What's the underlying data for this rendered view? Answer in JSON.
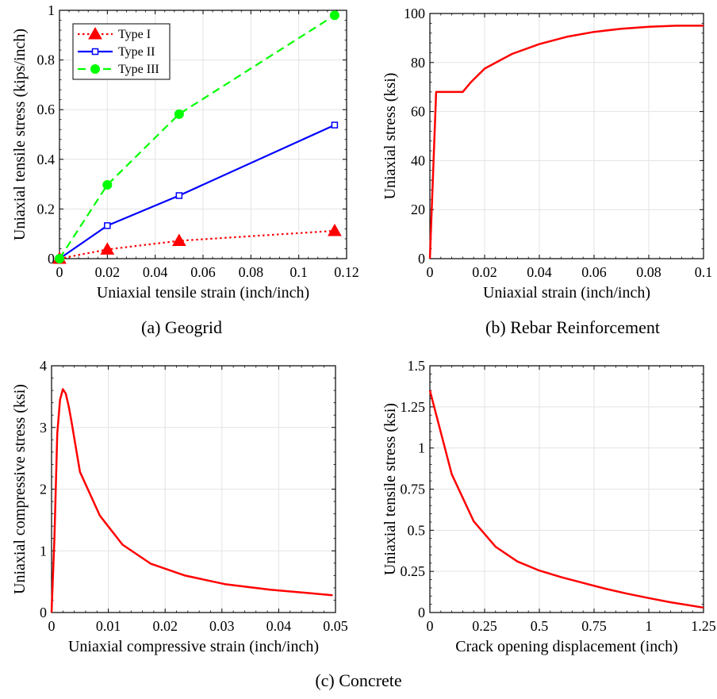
{
  "charts": [
    {
      "type": "line",
      "xlabel": "Uniaxial tensile strain (inch/inch)",
      "ylabel": "Uniaxial tensile stress (kips/inch)",
      "xlim": [
        0,
        0.12
      ],
      "ylim": [
        0,
        1
      ],
      "xticks": [
        0,
        0.02,
        0.04,
        0.06,
        0.08,
        0.1,
        0.12
      ],
      "xtick_labels": [
        "0",
        "0.02",
        "0.04",
        "0.06",
        "0.08",
        "0.1",
        "0.12"
      ],
      "yticks": [
        0,
        0.2,
        0.4,
        0.6,
        0.8,
        1
      ],
      "ytick_labels": [
        "0",
        "0.2",
        "0.4",
        "0.6",
        "0.8",
        "1"
      ],
      "grid": true,
      "legend": "top-left",
      "series": [
        {
          "name": "Type I",
          "color": "#ff0000",
          "line_style": "dotted",
          "marker": "triangle",
          "x": [
            0,
            0.02,
            0.05,
            0.115
          ],
          "y": [
            0,
            0.037,
            0.072,
            0.112
          ]
        },
        {
          "name": "Type II",
          "color": "#0000ff",
          "line_style": "solid",
          "marker": "square-open",
          "x": [
            0,
            0.02,
            0.05,
            0.115
          ],
          "y": [
            0,
            0.133,
            0.254,
            0.538
          ]
        },
        {
          "name": "Type III",
          "color": "#00ff00",
          "line_style": "dashed",
          "marker": "circle",
          "x": [
            0,
            0.02,
            0.05,
            0.115
          ],
          "y": [
            0,
            0.297,
            0.582,
            0.98
          ]
        }
      ]
    },
    {
      "type": "line",
      "xlabel": "Uniaxial strain (inch/inch)",
      "ylabel": "Uniaxial stress (ksi)",
      "xlim": [
        0,
        0.1
      ],
      "ylim": [
        0,
        100
      ],
      "xticks": [
        0,
        0.02,
        0.04,
        0.06,
        0.08,
        0.1
      ],
      "xtick_labels": [
        "0",
        "0.02",
        "0.04",
        "0.06",
        "0.08",
        "0.1"
      ],
      "yticks": [
        0,
        20,
        40,
        60,
        80,
        100
      ],
      "ytick_labels": [
        "0",
        "20",
        "40",
        "60",
        "80",
        "100"
      ],
      "grid": true,
      "series": [
        {
          "color": "#ff0000",
          "line_style": "solid",
          "x": [
            0,
            0.0023,
            0.012,
            0.015,
            0.02,
            0.03,
            0.04,
            0.05,
            0.06,
            0.07,
            0.08,
            0.09,
            0.1
          ],
          "y": [
            0,
            68,
            68,
            72,
            77.5,
            83.5,
            87.5,
            90.5,
            92.5,
            93.8,
            94.6,
            95,
            95
          ]
        }
      ]
    },
    {
      "type": "line",
      "xlabel": "Uniaxial compressive strain (inch/inch)",
      "ylabel": "Uniaxial compressive stress (ksi)",
      "xlim": [
        0,
        0.05
      ],
      "ylim": [
        0,
        4
      ],
      "xticks": [
        0,
        0.01,
        0.02,
        0.03,
        0.04,
        0.05
      ],
      "xtick_labels": [
        "0",
        "0.01",
        "0.02",
        "0.03",
        "0.04",
        "0.05"
      ],
      "yticks": [
        0,
        1,
        2,
        3,
        4
      ],
      "ytick_labels": [
        "0",
        "1",
        "2",
        "3",
        "4"
      ],
      "grid": true,
      "series": [
        {
          "color": "#ff0000",
          "line_style": "solid",
          "x": [
            0,
            0.0005,
            0.001,
            0.0015,
            0.002,
            0.0025,
            0.003,
            0.0035,
            0.005,
            0.0085,
            0.0125,
            0.0175,
            0.0235,
            0.0305,
            0.0385,
            0.0495
          ],
          "y": [
            0,
            1.2,
            2.9,
            3.45,
            3.62,
            3.55,
            3.35,
            3.1,
            2.28,
            1.57,
            1.1,
            0.79,
            0.6,
            0.46,
            0.37,
            0.28
          ]
        }
      ]
    },
    {
      "type": "line",
      "xlabel": "Crack opening displacement (inch)",
      "ylabel": "Uniaxial tensile stress (ksi)",
      "xlim": [
        0,
        1.25
      ],
      "ylim": [
        0,
        1.5
      ],
      "xticks": [
        0,
        0.25,
        0.5,
        0.75,
        1,
        1.25
      ],
      "xtick_labels": [
        "0",
        "0.25",
        "0.5",
        "0.75",
        "1",
        "1.25"
      ],
      "yticks": [
        0,
        0.25,
        0.5,
        0.75,
        1,
        1.25,
        1.5
      ],
      "ytick_labels": [
        "0",
        "0.25",
        "0.5",
        "0.75",
        "1",
        "1.25",
        "1.5"
      ],
      "grid": true,
      "series": [
        {
          "color": "#ff0000",
          "line_style": "solid",
          "x": [
            0,
            0.1,
            0.2,
            0.3,
            0.4,
            0.5,
            0.6,
            0.7,
            0.8,
            0.9,
            1.0,
            1.1,
            1.25
          ],
          "y": [
            1.35,
            0.84,
            0.555,
            0.4,
            0.31,
            0.255,
            0.215,
            0.18,
            0.145,
            0.115,
            0.088,
            0.062,
            0.03
          ]
        }
      ]
    }
  ],
  "captions": {
    "a": "(a) Geogrid",
    "b": "(b) Rebar Reinforcement",
    "c": "(c) Concrete"
  }
}
